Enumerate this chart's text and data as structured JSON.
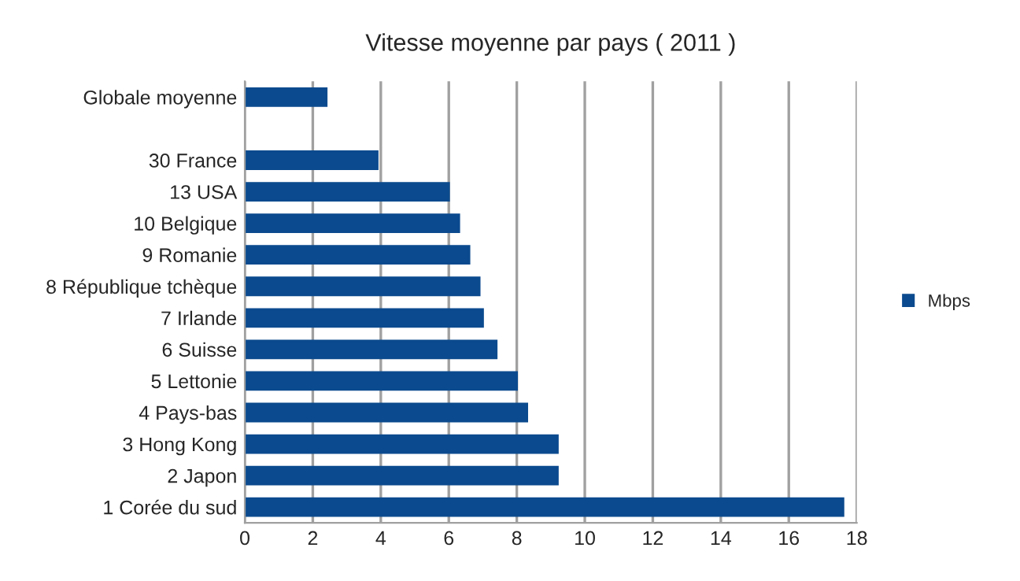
{
  "chart_data": {
    "type": "bar",
    "orientation": "horizontal",
    "title": "Vitesse moyenne par pays ( 2011 )",
    "categories": [
      "Globale moyenne",
      null,
      "30 France",
      "13 USA",
      "10 Belgique",
      "9 Romanie",
      "8 République tchèque",
      "7 Irlande",
      "6 Suisse",
      "5 Lettonie",
      "4 Pays-bas",
      "3 Hong Kong",
      "2 Japon",
      "1 Corée du sud"
    ],
    "series": [
      {
        "name": "Mbps",
        "color": "#0b4a8e",
        "values": [
          2.4,
          null,
          3.9,
          6.0,
          6.3,
          6.6,
          6.9,
          7.0,
          7.4,
          8.0,
          8.3,
          9.2,
          9.2,
          17.6
        ]
      }
    ],
    "xlim": [
      0,
      18
    ],
    "xticks": [
      0,
      2,
      4,
      6,
      8,
      10,
      12,
      14,
      16,
      18
    ],
    "grid": "x",
    "legend": "right"
  }
}
